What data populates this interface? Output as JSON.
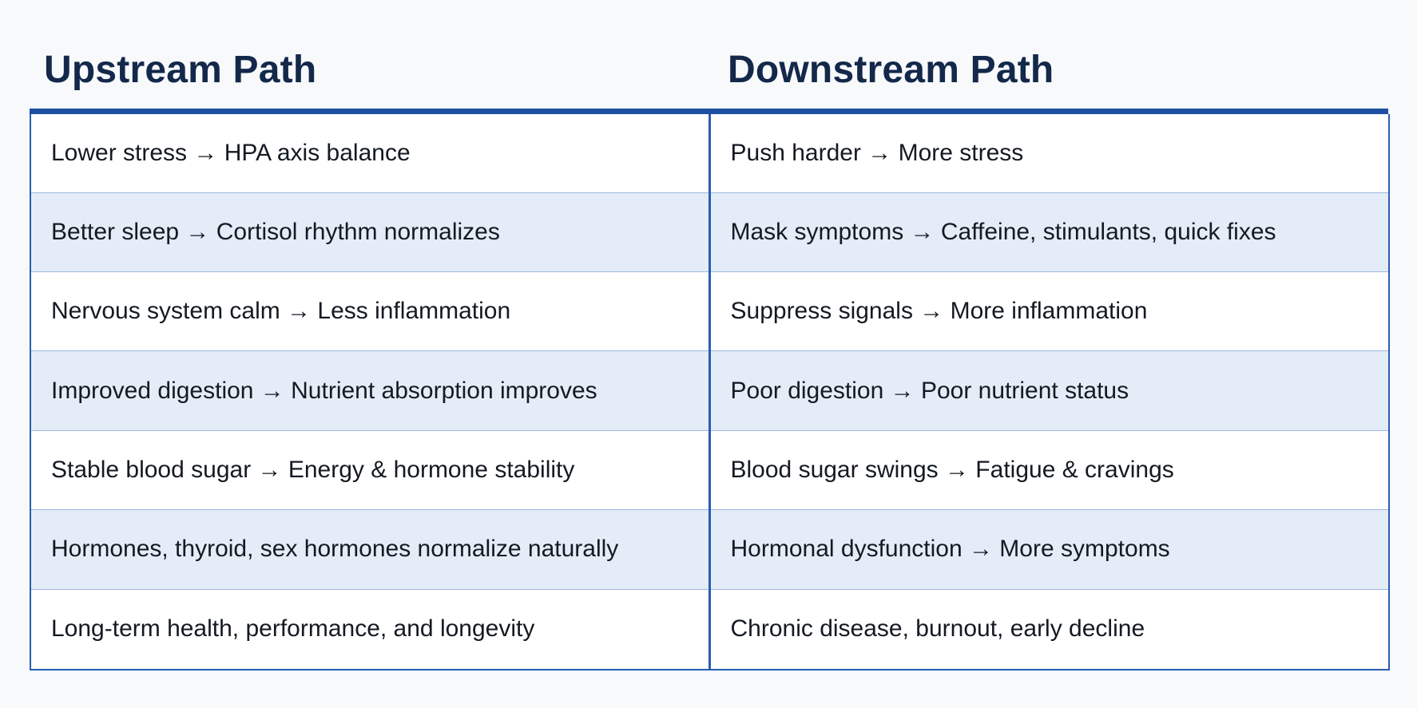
{
  "headers": {
    "upstream": "Upstream Path",
    "downstream": "Downstream Path"
  },
  "colors": {
    "header_text": "#13284a",
    "rule": "#1d4fa3",
    "border": "#2a5db0",
    "shaded_row": "#e4ecf8"
  },
  "rows": [
    {
      "upstream": "Lower stress → HPA axis balance",
      "downstream": "Push harder → More stress"
    },
    {
      "upstream": "Better sleep → Cortisol rhythm normalizes",
      "downstream": "Mask symptoms → Caffeine, stimulants, quick fixes"
    },
    {
      "upstream": "Nervous system calm → Less inflammation",
      "downstream": "Suppress signals → More inflammation"
    },
    {
      "upstream": "Improved digestion → Nutrient absorption improves",
      "downstream": "Poor digestion → Poor nutrient status"
    },
    {
      "upstream": "Stable blood sugar → Energy & hormone stability",
      "downstream": "Blood sugar swings → Fatigue & cravings"
    },
    {
      "upstream": "Hormones, thyroid, sex hormones normalize naturally",
      "downstream": "Hormonal dysfunction → More symptoms"
    },
    {
      "upstream": "Long-term health, performance, and longevity",
      "downstream": "Chronic disease, burnout, early decline"
    }
  ]
}
